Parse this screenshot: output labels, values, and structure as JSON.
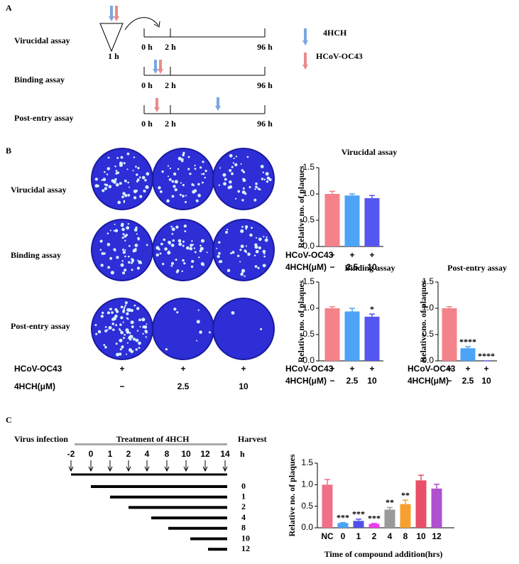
{
  "panel_a": {
    "label": "A",
    "rows": [
      {
        "label": "Virucidal assay",
        "times": [
          "0 h",
          "2 h",
          "96 h"
        ],
        "incubation": "1 h"
      },
      {
        "label": "Binding assay",
        "times": [
          "0 h",
          "2 h",
          "96 h"
        ]
      },
      {
        "label": "Post-entry assay",
        "times": [
          "0 h",
          "2 h",
          "96 h"
        ]
      }
    ],
    "legend": [
      {
        "name": "4HCH",
        "color": "#7ea6de"
      },
      {
        "name": "HCoV-OC43",
        "color": "#e98a8c"
      }
    ]
  },
  "panel_b": {
    "label": "B",
    "rows": [
      "Virucidal assay",
      "Binding assay",
      "Post-entry assay"
    ],
    "conditions": [
      {
        "label": "HCoV-OC43",
        "values": [
          "+",
          "+",
          "+"
        ]
      },
      {
        "label": "4HCH(μM)",
        "values": [
          "−",
          "2.5",
          "10"
        ]
      }
    ]
  },
  "panel_c": {
    "label": "C",
    "phases": [
      "Virus infection",
      "Treatment of 4HCH",
      "Harvest"
    ],
    "ticks": [
      "-2",
      "0",
      "1",
      "2",
      "4",
      "8",
      "10",
      "12",
      "14"
    ],
    "unit": "h",
    "bars": [
      "0",
      "1",
      "2",
      "4",
      "8",
      "10",
      "12"
    ]
  },
  "chart_data": [
    {
      "type": "bar",
      "title": "Virucidal assay",
      "ylabel": "Relative no. of plaques",
      "rows": [
        {
          "label": "HCoV-OC43",
          "values": [
            "+",
            "+",
            "+"
          ]
        },
        {
          "label": "4HCH(μM)",
          "values": [
            "−",
            "2.5",
            "10"
          ]
        }
      ],
      "values": [
        1.0,
        0.97,
        0.92
      ],
      "errors": [
        0.05,
        0.03,
        0.05
      ],
      "annotations": [
        null,
        null,
        null
      ],
      "colors": [
        "#f4828a",
        "#4da3f5",
        "#5555ef"
      ],
      "ylim": [
        0,
        1.5
      ],
      "yticks": [
        {
          "value": 0,
          "label": "0.0"
        },
        {
          "value": 0.5,
          "label": "0.5"
        },
        {
          "value": 1,
          "label": "1.0"
        },
        {
          "value": 1.5,
          "label": "1.5"
        }
      ]
    },
    {
      "type": "bar",
      "title": "Binding assay",
      "ylabel": "Relative no. of plaques",
      "rows": [
        {
          "label": "HCoV-OC43",
          "values": [
            "+",
            "+",
            "+"
          ]
        },
        {
          "label": "4HCH(μM)",
          "values": [
            "−",
            "2.5",
            "10"
          ]
        }
      ],
      "values": [
        1.0,
        0.94,
        0.84
      ],
      "errors": [
        0.03,
        0.06,
        0.05
      ],
      "annotations": [
        null,
        null,
        "*"
      ],
      "colors": [
        "#f4828a",
        "#4da3f5",
        "#5555ef"
      ],
      "ylim": [
        0,
        1.5
      ],
      "yticks": [
        {
          "value": 0,
          "label": "0.0"
        },
        {
          "value": 0.5,
          "label": "0.5"
        },
        {
          "value": 1,
          "label": "1.0"
        },
        {
          "value": 1.5,
          "label": "1.5"
        }
      ]
    },
    {
      "type": "bar",
      "title": "Post-entry assay",
      "ylabel": "Relative no. of plaques",
      "rows": [
        {
          "label": "HCoV-OC43",
          "values": [
            "+",
            "+",
            "+"
          ]
        },
        {
          "label": "4HCH(μM)",
          "values": [
            "−",
            "2.5",
            "10"
          ]
        }
      ],
      "values": [
        1.0,
        0.24,
        0.0
      ],
      "errors": [
        0.03,
        0.03,
        0
      ],
      "annotations": [
        null,
        "****",
        "****"
      ],
      "colors": [
        "#f4828a",
        "#4da3f5",
        "#5555ef"
      ],
      "ylim": [
        0,
        1.5
      ],
      "yticks": [
        {
          "value": 0,
          "label": "0.0"
        },
        {
          "value": 0.5,
          "label": "0.5"
        },
        {
          "value": 1,
          "label": "1.0"
        },
        {
          "value": 1.5,
          "label": "1.5"
        }
      ]
    },
    {
      "type": "bar",
      "ylabel": "Relative no. of plaques",
      "xlabel": "Time of compound addition(hrs)",
      "categories": [
        "NC",
        "0",
        "1",
        "2",
        "4",
        "8",
        "10",
        "12"
      ],
      "values": [
        1.0,
        0.11,
        0.16,
        0.09,
        0.42,
        0.55,
        1.1,
        0.91
      ],
      "errors": [
        0.12,
        0.01,
        0.04,
        0.01,
        0.05,
        0.09,
        0.12,
        0.1
      ],
      "annotations": [
        null,
        "***",
        "***",
        "***",
        "**",
        "**",
        null,
        null
      ],
      "colors": [
        "#f0708a",
        "#4da3f5",
        "#5050e8",
        "#f03cf0",
        "#9a9a9a",
        "#f7a030",
        "#e8506a",
        "#b050d0"
      ],
      "ylim": [
        0,
        1.5
      ],
      "yticks": [
        {
          "value": 0,
          "label": "0.0"
        },
        {
          "value": 0.5,
          "label": "0.5"
        },
        {
          "value": 1,
          "label": "1.0"
        },
        {
          "value": 1.5,
          "label": "1.5"
        }
      ]
    }
  ]
}
